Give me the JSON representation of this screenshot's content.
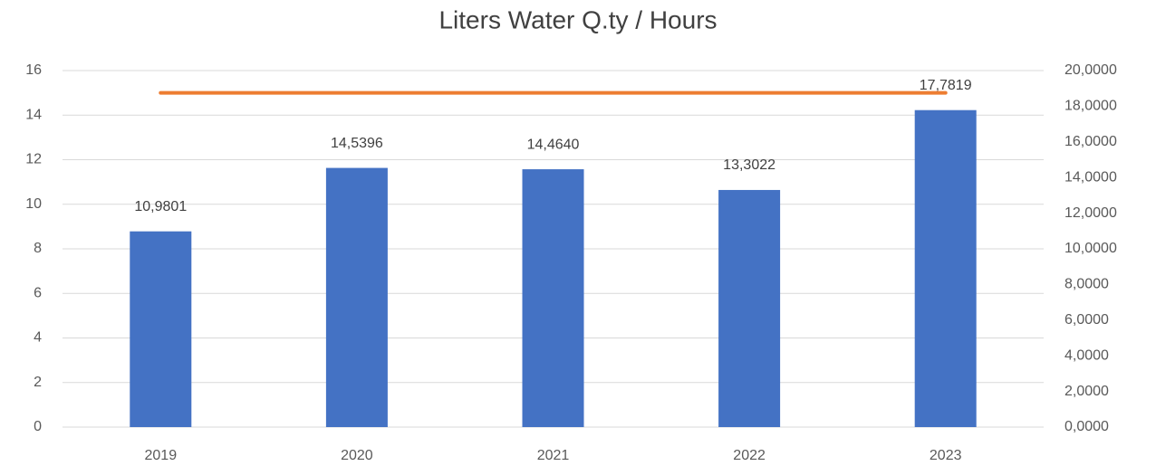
{
  "chart_data": {
    "type": "bar",
    "title": "Liters Water Q.ty / Hours",
    "categories": [
      "2019",
      "2020",
      "2021",
      "2022",
      "2023"
    ],
    "series": [
      {
        "type": "bar",
        "axis": "y2",
        "color": "#4472c4",
        "values": [
          10.9801,
          14.5396,
          14.464,
          13.3022,
          17.7819
        ],
        "value_labels": [
          "10,9801",
          "14,5396",
          "14,4640",
          "13,3022",
          "17,7819"
        ]
      },
      {
        "type": "line",
        "axis": "y",
        "color": "#ed7d31",
        "values": [
          15,
          15,
          15,
          15,
          15
        ]
      }
    ],
    "ylim": [
      0,
      16
    ],
    "yticks": [
      0,
      2,
      4,
      6,
      8,
      10,
      12,
      14,
      16
    ],
    "y2lim": [
      0,
      20
    ],
    "y2ticks": [
      {
        "value": 0,
        "label": "0,0000"
      },
      {
        "value": 2,
        "label": "2,0000"
      },
      {
        "value": 4,
        "label": "4,0000"
      },
      {
        "value": 6,
        "label": "6,0000"
      },
      {
        "value": 8,
        "label": "8,0000"
      },
      {
        "value": 10,
        "label": "10,0000"
      },
      {
        "value": 12,
        "label": "12,0000"
      },
      {
        "value": 14,
        "label": "14,0000"
      },
      {
        "value": 16,
        "label": "16,0000"
      },
      {
        "value": 18,
        "label": "18,0000"
      },
      {
        "value": 20,
        "label": "20,0000"
      }
    ],
    "grid": true
  }
}
